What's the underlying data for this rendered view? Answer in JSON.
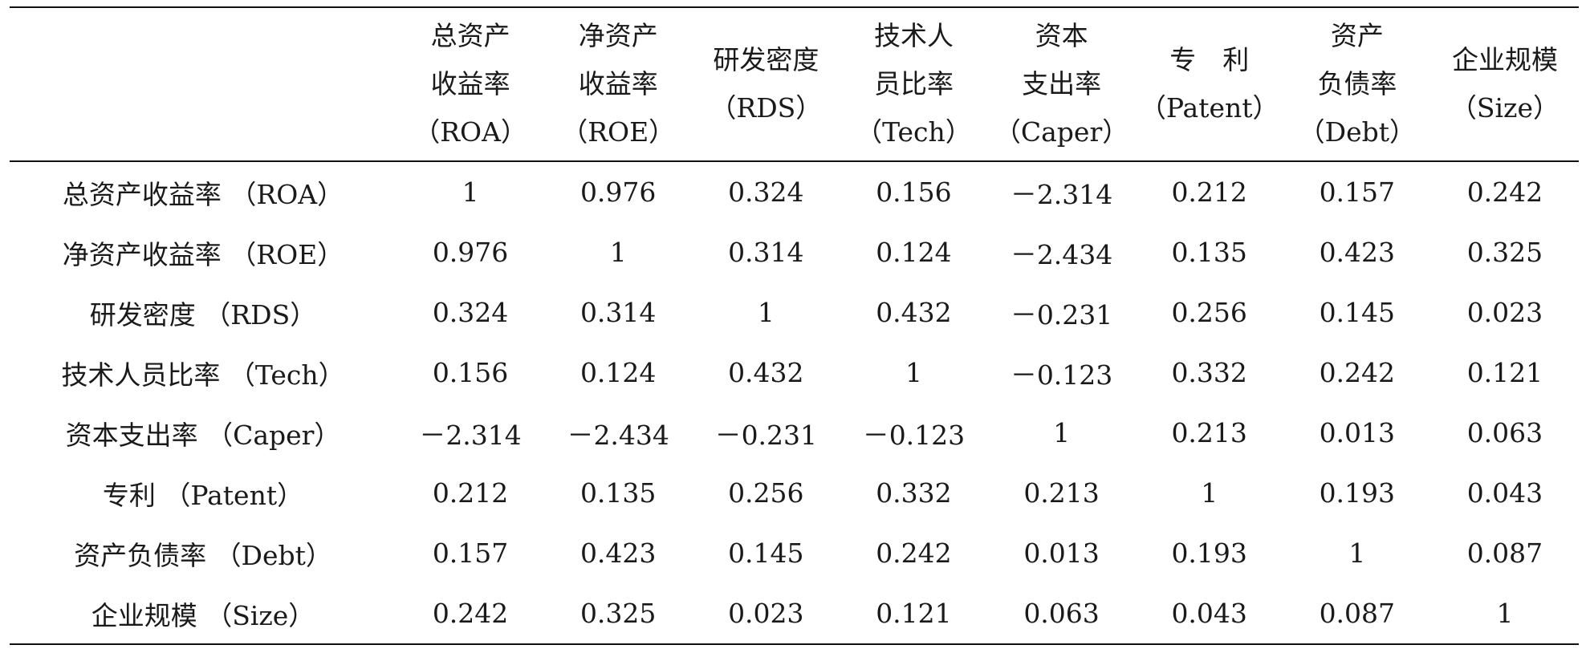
{
  "table": {
    "headers": [
      {
        "lines": [
          "总资产",
          "收益率",
          "（ROA）"
        ]
      },
      {
        "lines": [
          "净资产",
          "收益率",
          "（ROE）"
        ]
      },
      {
        "lines": [
          "研发密度",
          "（RDS）"
        ]
      },
      {
        "lines": [
          "技术人",
          "员比率",
          "（Tech）"
        ]
      },
      {
        "lines": [
          "资本",
          "支出率",
          "（Caper）"
        ]
      },
      {
        "lines": [
          "专　利",
          "（Patent）"
        ]
      },
      {
        "lines": [
          "资产",
          "负债率",
          "（Debt）"
        ]
      },
      {
        "lines": [
          "企业规模",
          "（Size）"
        ]
      }
    ],
    "rows": [
      {
        "label": "总资产收益率 （ROA）",
        "values": [
          "1",
          "0.976",
          "0.324",
          "0.156",
          "－2.314",
          "0.212",
          "0.157",
          "0.242"
        ]
      },
      {
        "label": "净资产收益率 （ROE）",
        "values": [
          "0.976",
          "1",
          "0.314",
          "0.124",
          "－2.434",
          "0.135",
          "0.423",
          "0.325"
        ]
      },
      {
        "label": "研发密度 （RDS）",
        "values": [
          "0.324",
          "0.314",
          "1",
          "0.432",
          "－0.231",
          "0.256",
          "0.145",
          "0.023"
        ]
      },
      {
        "label": "技术人员比率 （Tech）",
        "values": [
          "0.156",
          "0.124",
          "0.432",
          "1",
          "－0.123",
          "0.332",
          "0.242",
          "0.121"
        ]
      },
      {
        "label": "资本支出率 （Caper）",
        "values": [
          "－2.314",
          "－2.434",
          "－0.231",
          "－0.123",
          "1",
          "0.213",
          "0.013",
          "0.063"
        ]
      },
      {
        "label": "专利 （Patent）",
        "values": [
          "0.212",
          "0.135",
          "0.256",
          "0.332",
          "0.213",
          "1",
          "0.193",
          "0.043"
        ]
      },
      {
        "label": "资产负债率 （Debt）",
        "values": [
          "0.157",
          "0.423",
          "0.145",
          "0.242",
          "0.013",
          "0.193",
          "1",
          "0.087"
        ]
      },
      {
        "label": "企业规模 （Size）",
        "values": [
          "0.242",
          "0.325",
          "0.023",
          "0.121",
          "0.063",
          "0.043",
          "0.087",
          "1"
        ]
      }
    ]
  }
}
